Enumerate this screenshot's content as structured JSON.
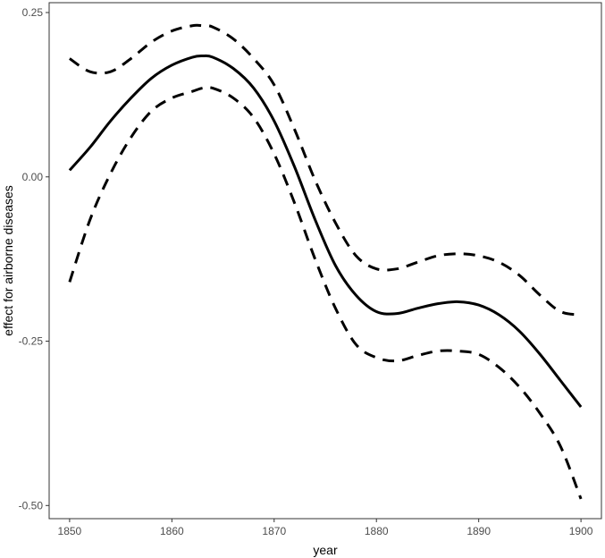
{
  "chart_data": {
    "type": "line",
    "title": "",
    "xlabel": "year",
    "ylabel": "effect for airborne diseases",
    "xlim": [
      1848,
      1902
    ],
    "ylim": [
      -0.52,
      0.265
    ],
    "xticks": [
      1850,
      1860,
      1870,
      1880,
      1890,
      1900
    ],
    "xtick_labels": [
      "1850",
      "1860",
      "1870",
      "1880",
      "1890",
      "1900"
    ],
    "yticks": [
      0.25,
      0.0,
      -0.25,
      -0.5
    ],
    "ytick_labels": [
      "0.25",
      "0.00",
      "-0.25",
      "-0.50"
    ],
    "grid": false,
    "legend": "none",
    "colors": {
      "line": "#000000",
      "frame": "#333333",
      "tick_text": "#4d4d4d"
    },
    "series": [
      {
        "style": "solid",
        "x": [
          1850,
          1852,
          1854,
          1856,
          1858,
          1860,
          1862,
          1863,
          1864,
          1866,
          1868,
          1870,
          1872,
          1874,
          1876,
          1878,
          1880,
          1882,
          1884,
          1886,
          1888,
          1890,
          1892,
          1894,
          1896,
          1898,
          1900
        ],
        "y": [
          0.01,
          0.045,
          0.085,
          0.12,
          0.15,
          0.17,
          0.182,
          0.184,
          0.182,
          0.165,
          0.135,
          0.085,
          0.015,
          -0.065,
          -0.135,
          -0.18,
          -0.205,
          -0.208,
          -0.2,
          -0.193,
          -0.19,
          -0.195,
          -0.21,
          -0.235,
          -0.27,
          -0.31,
          -0.35
        ]
      },
      {
        "style": "dashed",
        "x": [
          1850,
          1852,
          1854,
          1856,
          1858,
          1860,
          1862,
          1863,
          1864,
          1866,
          1868,
          1870,
          1872,
          1874,
          1876,
          1878,
          1880,
          1882,
          1884,
          1886,
          1888,
          1890,
          1892,
          1894,
          1896,
          1898,
          1900
        ],
        "y": [
          0.18,
          0.16,
          0.16,
          0.18,
          0.205,
          0.222,
          0.23,
          0.23,
          0.228,
          0.21,
          0.18,
          0.14,
          0.072,
          -0.005,
          -0.07,
          -0.12,
          -0.14,
          -0.14,
          -0.13,
          -0.12,
          -0.117,
          -0.12,
          -0.13,
          -0.15,
          -0.18,
          -0.205,
          -0.21
        ]
      },
      {
        "style": "dashed",
        "x": [
          1850,
          1852,
          1854,
          1856,
          1858,
          1860,
          1862,
          1863,
          1864,
          1866,
          1868,
          1870,
          1872,
          1874,
          1876,
          1878,
          1880,
          1882,
          1884,
          1886,
          1888,
          1890,
          1892,
          1894,
          1896,
          1898,
          1900
        ],
        "y": [
          -0.16,
          -0.065,
          0.005,
          0.06,
          0.1,
          0.12,
          0.13,
          0.135,
          0.135,
          0.12,
          0.09,
          0.035,
          -0.04,
          -0.125,
          -0.2,
          -0.255,
          -0.275,
          -0.28,
          -0.272,
          -0.265,
          -0.265,
          -0.27,
          -0.29,
          -0.32,
          -0.36,
          -0.41,
          -0.49
        ]
      }
    ]
  }
}
